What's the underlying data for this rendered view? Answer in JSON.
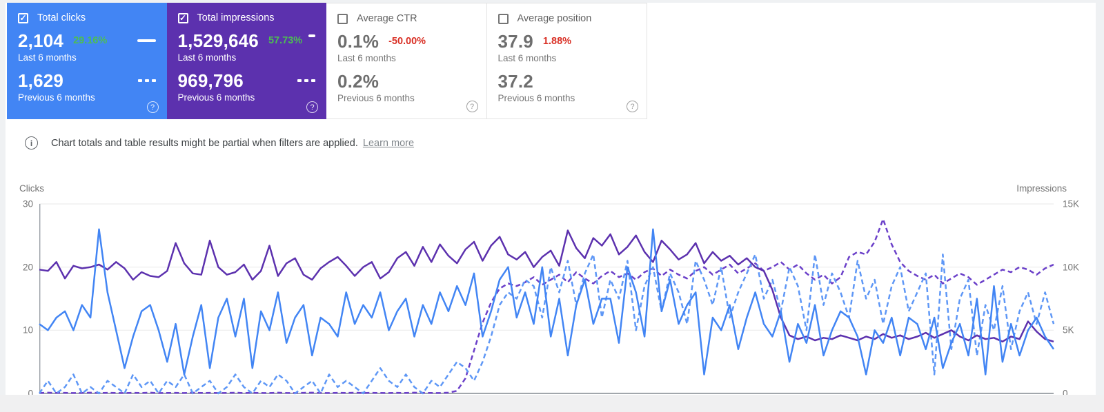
{
  "icons": {
    "help": "?",
    "check": "✓",
    "info": "i"
  },
  "cards": [
    {
      "label": "Total clicks",
      "checked": true,
      "theme": "blue",
      "value_current": "2,104",
      "delta": "29.16%",
      "period_current": "Last 6 months",
      "value_previous": "1,629",
      "period_previous": "Previous 6 months"
    },
    {
      "label": "Total impressions",
      "checked": true,
      "theme": "purple",
      "value_current": "1,529,646",
      "delta": "57.73%",
      "period_current": "Last 6 months",
      "value_previous": "969,796",
      "period_previous": "Previous 6 months"
    },
    {
      "label": "Average CTR",
      "checked": false,
      "theme": "plain",
      "value_current": "0.1%",
      "delta": "-50.00%",
      "period_current": "Last 6 months",
      "value_previous": "0.2%",
      "period_previous": "Previous 6 months"
    },
    {
      "label": "Average position",
      "checked": false,
      "theme": "plain",
      "value_current": "37.9",
      "delta": "1.88%",
      "period_current": "Last 6 months",
      "value_previous": "37.2",
      "period_previous": "Previous 6 months"
    }
  ],
  "colors": {
    "blue_card": "#4285f4",
    "purple_card": "#5c31ae",
    "delta_positive": "#4dbe52",
    "delta_negative": "#d93025",
    "clicks_line": "#4285f4",
    "clicks_prev_line": "#5e97f6",
    "impressions_line": "#5c31ae",
    "impressions_prev_line": "#6b40c9"
  },
  "notice": {
    "text": "Chart totals and table results might be partial when filters are applied.",
    "link_label": "Learn more"
  },
  "chart_data": {
    "type": "line",
    "x_labels_visible": false,
    "grid": true,
    "legend_position": "none",
    "left_axis": {
      "label": "Clicks",
      "range": [
        0,
        30
      ],
      "ticks": [
        "30",
        "20",
        "10",
        "0"
      ]
    },
    "right_axis": {
      "label": "Impressions",
      "range": [
        0,
        15000
      ],
      "ticks": [
        "15K",
        "10K",
        "5K",
        "0"
      ]
    },
    "series": [
      {
        "id": "impressions-previous-6-months",
        "name": "Impressions — Previous 6 months",
        "axis": "right",
        "color": "#6b40c9",
        "dash": true,
        "values": [
          30,
          60,
          40,
          50,
          30,
          40,
          60,
          30,
          50,
          40,
          30,
          50,
          40,
          60,
          30,
          40,
          50,
          30,
          60,
          40,
          50,
          30,
          40,
          60,
          30,
          50,
          40,
          30,
          60,
          40,
          30,
          50,
          60,
          40,
          30,
          50,
          40,
          60,
          30,
          50,
          40,
          30,
          50,
          40,
          60,
          50,
          40,
          30,
          60,
          200,
          1200,
          3400,
          5600,
          7200,
          8300,
          8700,
          8500,
          8800,
          9200,
          8600,
          9000,
          9400,
          8800,
          9600,
          9100,
          8700,
          9300,
          9700,
          9200,
          9500,
          9000,
          9600,
          9900,
          9300,
          9800,
          9400,
          9100,
          9700,
          10000,
          9400,
          9800,
          10200,
          9500,
          9900,
          10300,
          9700,
          10000,
          10400,
          9800,
          10200,
          9500,
          9000,
          9400,
          8700,
          9200,
          10800,
          11200,
          11000,
          12000,
          13800,
          11800,
          10400,
          9700,
          9300,
          9000,
          9400,
          8700,
          9100,
          9500,
          9200,
          8600,
          9000,
          9400,
          9800,
          9600,
          10000,
          9800,
          9400,
          9900,
          10200
        ]
      },
      {
        "id": "clicks-previous-6-months",
        "name": "Clicks — Previous 6 months",
        "axis": "left",
        "color": "#5e97f6",
        "dash": true,
        "values": [
          0,
          2,
          0,
          1,
          3,
          0,
          1,
          0,
          2,
          1,
          0,
          3,
          1,
          2,
          0,
          2,
          1,
          3,
          0,
          1,
          2,
          0,
          1,
          3,
          1,
          0,
          2,
          1,
          3,
          2,
          0,
          1,
          2,
          0,
          3,
          1,
          2,
          1,
          0,
          2,
          4,
          2,
          1,
          3,
          1,
          0,
          2,
          1,
          3,
          5,
          4,
          2,
          5,
          9,
          14,
          16,
          15,
          18,
          17,
          12,
          20,
          16,
          21,
          14,
          19,
          22,
          12,
          18,
          15,
          21,
          10,
          17,
          20,
          13,
          19,
          16,
          11,
          21,
          18,
          14,
          20,
          12,
          16,
          19,
          22,
          15,
          18,
          13,
          20,
          17,
          10,
          22,
          14,
          19,
          16,
          12,
          21,
          15,
          18,
          11,
          17,
          20,
          13,
          16,
          19,
          3,
          22,
          7,
          15,
          18,
          6,
          14,
          10,
          17,
          7,
          13,
          16,
          11,
          16,
          11
        ]
      },
      {
        "id": "impressions-last-6-months",
        "name": "Impressions — Last 6 months",
        "axis": "right",
        "color": "#5c31ae",
        "dash": false,
        "values": [
          9800,
          9700,
          10400,
          9100,
          10100,
          9900,
          10000,
          10200,
          9800,
          10400,
          9900,
          9000,
          9600,
          9300,
          9200,
          9700,
          11900,
          10300,
          9500,
          9400,
          12100,
          10000,
          9400,
          9600,
          10200,
          9000,
          9700,
          11700,
          9300,
          10300,
          10700,
          9400,
          9000,
          9900,
          10400,
          10800,
          10100,
          9300,
          10000,
          10400,
          9100,
          9600,
          10700,
          11200,
          10100,
          11600,
          10400,
          11800,
          10900,
          10300,
          11400,
          12000,
          10500,
          11700,
          12400,
          11000,
          10600,
          11200,
          10000,
          10800,
          11300,
          10100,
          12900,
          11500,
          10700,
          12300,
          11700,
          12600,
          11000,
          11600,
          12500,
          11200,
          10400,
          12100,
          11400,
          10600,
          11000,
          11900,
          10300,
          11200,
          10500,
          10900,
          10200,
          10700,
          10000,
          9700,
          8200,
          6000,
          4600,
          4300,
          4500,
          4200,
          4400,
          4300,
          4600,
          4400,
          4200,
          4500,
          4300,
          4700,
          4400,
          4600,
          4300,
          4500,
          4800,
          4400,
          4700,
          5000,
          4500,
          4200,
          4600,
          4300,
          4400,
          4100,
          4500,
          4300,
          5700,
          4900,
          4300,
          4100
        ]
      },
      {
        "id": "clicks-last-6-months",
        "name": "Clicks — Last 6 months",
        "axis": "left",
        "color": "#4285f4",
        "dash": false,
        "values": [
          11,
          10,
          12,
          13,
          10,
          14,
          12,
          26,
          16,
          10,
          4,
          9,
          13,
          14,
          10,
          5,
          11,
          3,
          9,
          14,
          4,
          12,
          15,
          9,
          15,
          4,
          13,
          10,
          16,
          8,
          12,
          14,
          6,
          12,
          11,
          9,
          16,
          11,
          14,
          12,
          16,
          10,
          13,
          15,
          9,
          14,
          11,
          16,
          13,
          17,
          14,
          19,
          9,
          13,
          18,
          20,
          12,
          16,
          11,
          20,
          9,
          15,
          6,
          14,
          18,
          11,
          15,
          15,
          8,
          20,
          16,
          9,
          26,
          13,
          18,
          11,
          14,
          16,
          3,
          12,
          10,
          14,
          7,
          12,
          16,
          11,
          9,
          13,
          5,
          11,
          8,
          14,
          6,
          10,
          13,
          12,
          9,
          3,
          10,
          8,
          12,
          6,
          12,
          11,
          7,
          12,
          4,
          8,
          11,
          6,
          15,
          3,
          17,
          5,
          11,
          6,
          10,
          12,
          9,
          7
        ]
      }
    ]
  }
}
